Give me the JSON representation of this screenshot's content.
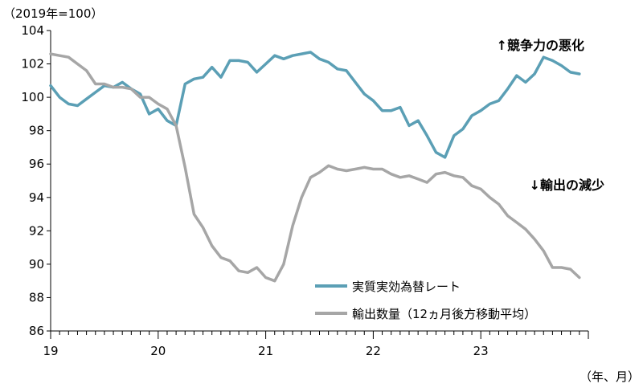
{
  "chart_data": {
    "type": "line",
    "y_unit_label": "（2019年=100）",
    "x_unit_label": "（年、月）",
    "ylim": [
      86,
      104
    ],
    "y_ticks": [
      86,
      88,
      90,
      92,
      94,
      96,
      98,
      100,
      102,
      104
    ],
    "y_tick_labels": [
      "86",
      "88",
      "90",
      "92",
      "94",
      "96",
      "98",
      "100",
      "102",
      "104"
    ],
    "x_range": [
      0,
      60
    ],
    "x_year_ticks": [
      {
        "pos": 0,
        "label": "19"
      },
      {
        "pos": 12,
        "label": "20"
      },
      {
        "pos": 24,
        "label": "21"
      },
      {
        "pos": 36,
        "label": "22"
      },
      {
        "pos": 48,
        "label": "23"
      }
    ],
    "grid": false,
    "legend_position": "bottom-right",
    "annotations": [
      {
        "text": "↑競争力の悪化",
        "anchor": "top-right"
      },
      {
        "text": "↓輸出の減少",
        "anchor": "middle-right"
      }
    ],
    "series": [
      {
        "name": "実質実効為替レート",
        "color": "#5B9FB5",
        "x": [
          0,
          1,
          2,
          3,
          4,
          5,
          6,
          7,
          8,
          9,
          10,
          11,
          12,
          13,
          14,
          15,
          16,
          17,
          18,
          19,
          20,
          21,
          22,
          23,
          24,
          25,
          26,
          27,
          28,
          29,
          30,
          31,
          32,
          33,
          34,
          35,
          36,
          37,
          38,
          39,
          40,
          41,
          42,
          43,
          44,
          45,
          46,
          47,
          48,
          49,
          50,
          51,
          52,
          53,
          54,
          55,
          56,
          57,
          58,
          59
        ],
        "values": [
          100.7,
          100.0,
          99.6,
          99.5,
          99.9,
          100.3,
          100.7,
          100.6,
          100.9,
          100.5,
          100.2,
          99.0,
          99.3,
          98.6,
          98.3,
          100.8,
          101.1,
          101.2,
          101.8,
          101.2,
          102.2,
          102.2,
          102.1,
          101.5,
          102.0,
          102.5,
          102.3,
          102.5,
          102.6,
          102.7,
          102.3,
          102.1,
          101.7,
          101.6,
          100.9,
          100.2,
          99.8,
          99.2,
          99.2,
          99.4,
          98.3,
          98.6,
          97.7,
          96.7,
          96.4,
          97.7,
          98.1,
          98.9,
          99.2,
          99.6,
          99.8,
          100.5,
          101.3,
          100.9,
          101.4,
          102.4,
          102.2,
          101.9,
          101.5,
          101.4
        ]
      },
      {
        "name": "輸出数量（12ヵ月後方移動平均）",
        "color": "#A6A6A6",
        "x": [
          0,
          1,
          2,
          3,
          4,
          5,
          6,
          7,
          8,
          9,
          10,
          11,
          12,
          13,
          14,
          15,
          16,
          17,
          18,
          19,
          20,
          21,
          22,
          23,
          24,
          25,
          26,
          27,
          28,
          29,
          30,
          31,
          32,
          33,
          34,
          35,
          36,
          37,
          38,
          39,
          40,
          41,
          42,
          43,
          44,
          45,
          46,
          47,
          48,
          49,
          50,
          51,
          52,
          53,
          54,
          55,
          56,
          57,
          58,
          59
        ],
        "values": [
          102.6,
          102.5,
          102.4,
          102.0,
          101.6,
          100.8,
          100.8,
          100.6,
          100.6,
          100.5,
          100.0,
          100.0,
          99.6,
          99.3,
          98.3,
          95.8,
          93.0,
          92.2,
          91.1,
          90.4,
          90.2,
          89.6,
          89.5,
          89.8,
          89.2,
          89.0,
          90.0,
          92.3,
          94.0,
          95.2,
          95.5,
          95.9,
          95.7,
          95.6,
          95.7,
          95.8,
          95.7,
          95.7,
          95.4,
          95.2,
          95.3,
          95.1,
          94.9,
          95.4,
          95.5,
          95.3,
          95.2,
          94.7,
          94.5,
          94.0,
          93.6,
          92.9,
          92.5,
          92.1,
          91.5,
          90.8,
          89.8,
          89.8,
          89.7,
          89.2
        ]
      }
    ]
  }
}
